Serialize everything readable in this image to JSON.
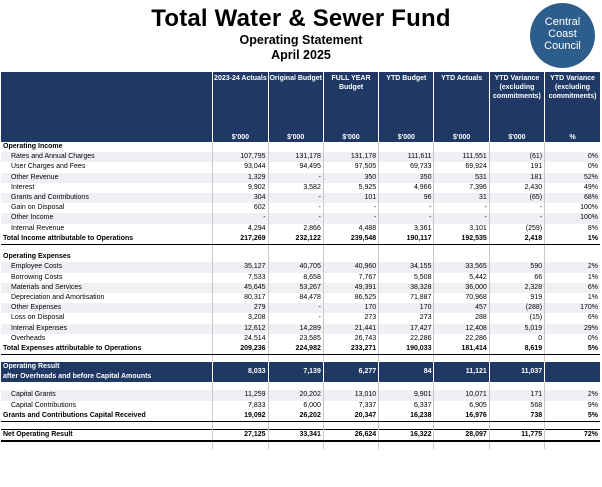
{
  "header": {
    "title": "Total Water & Sewer Fund",
    "subtitle": "Operating Statement",
    "period": "April 2025",
    "logo_lines": [
      "Central",
      "Coast",
      "Council"
    ]
  },
  "columns": [
    {
      "label": "2023-24 Actuals",
      "unit": "$'000"
    },
    {
      "label": "Original Budget",
      "unit": "$'000"
    },
    {
      "label": "FULL YEAR Budget",
      "unit": "$'000"
    },
    {
      "label": "YTD Budget",
      "unit": "$'000"
    },
    {
      "label": "YTD Actuals",
      "unit": "$'000"
    },
    {
      "label": "YTD Variance (excluding commitments)",
      "unit": "$'000"
    },
    {
      "label": "YTD Variance (excluding commitments)",
      "unit": "%"
    }
  ],
  "rows": [
    {
      "type": "sec",
      "label": "Operating Income",
      "v": [
        "",
        "",
        "",
        "",
        "",
        "",
        ""
      ]
    },
    {
      "type": "item",
      "shade": true,
      "label": "Rates and Annual Charges",
      "v": [
        "107,795",
        "131,178",
        "131,178",
        "111,611",
        "111,551",
        "(61)",
        "0%"
      ]
    },
    {
      "type": "item",
      "label": "User Charges and Fees",
      "v": [
        "93,044",
        "94,495",
        "97,505",
        "69,733",
        "69,924",
        "191",
        "0%"
      ]
    },
    {
      "type": "item",
      "shade": true,
      "label": "Other Revenue",
      "v": [
        "1,329",
        "-",
        "350",
        "350",
        "531",
        "181",
        "52%"
      ]
    },
    {
      "type": "item",
      "label": "Interest",
      "v": [
        "9,902",
        "3,582",
        "5,925",
        "4,966",
        "7,396",
        "2,430",
        "49%"
      ]
    },
    {
      "type": "item",
      "shade": true,
      "label": "Grants and Contributions",
      "v": [
        "304",
        "-",
        "101",
        "96",
        "31",
        "(65)",
        "68%"
      ]
    },
    {
      "type": "item",
      "label": "Gain on Disposal",
      "v": [
        "602",
        "-",
        "-",
        "-",
        "-",
        "-",
        "100%"
      ]
    },
    {
      "type": "item",
      "shade": true,
      "label": "Other Income",
      "v": [
        "-",
        "-",
        "-",
        "-",
        "-",
        "-",
        "100%"
      ]
    },
    {
      "type": "item",
      "label": "Internal Revenue",
      "v": [
        "4,294",
        "2,866",
        "4,488",
        "3,361",
        "3,101",
        "(259)",
        "8%"
      ]
    },
    {
      "type": "total",
      "label": "Total Income attributable to Operations",
      "v": [
        "217,269",
        "232,122",
        "239,548",
        "190,117",
        "192,535",
        "2,418",
        "1%"
      ]
    },
    {
      "type": "blank",
      "label": "",
      "v": [
        "",
        "",
        "",
        "",
        "",
        "",
        ""
      ]
    },
    {
      "type": "sec",
      "label": "Operating Expenses",
      "v": [
        "",
        "",
        "",
        "",
        "",
        "",
        ""
      ]
    },
    {
      "type": "item",
      "shade": true,
      "label": "Employee Costs",
      "v": [
        "35,127",
        "40,705",
        "40,960",
        "34,155",
        "33,565",
        "590",
        "2%"
      ]
    },
    {
      "type": "item",
      "label": "Borrowing Costs",
      "v": [
        "7,533",
        "8,658",
        "7,767",
        "5,508",
        "5,442",
        "66",
        "1%"
      ]
    },
    {
      "type": "item",
      "shade": true,
      "label": "Materials and Services",
      "v": [
        "45,645",
        "53,267",
        "49,391",
        "38,328",
        "36,000",
        "2,328",
        "6%"
      ]
    },
    {
      "type": "item",
      "label": "Depreciation and Amortisation",
      "v": [
        "80,317",
        "84,478",
        "86,525",
        "71,887",
        "70,968",
        "919",
        "1%"
      ]
    },
    {
      "type": "item",
      "shade": true,
      "label": "Other Expenses",
      "v": [
        "279",
        "-",
        "170",
        "170",
        "457",
        "(288)",
        "170%"
      ]
    },
    {
      "type": "item",
      "label": "Loss on Disposal",
      "v": [
        "3,208",
        "-",
        "273",
        "273",
        "288",
        "(15)",
        "6%"
      ]
    },
    {
      "type": "item",
      "shade": true,
      "label": "Internal Expenses",
      "v": [
        "12,612",
        "14,289",
        "21,441",
        "17,427",
        "12,408",
        "5,019",
        "29%"
      ]
    },
    {
      "type": "item",
      "label": "Overheads",
      "v": [
        "24,514",
        "23,585",
        "26,743",
        "22,286",
        "22,286",
        "0",
        "0%"
      ]
    },
    {
      "type": "total",
      "label": "Total Expenses attributable to Operations",
      "v": [
        "209,236",
        "224,982",
        "233,271",
        "190,033",
        "181,414",
        "8,619",
        "5%"
      ]
    },
    {
      "type": "blank",
      "label": "",
      "v": [
        "",
        "",
        "",
        "",
        "",
        "",
        ""
      ]
    },
    {
      "type": "oper",
      "label": "Operating Result",
      "label2": "after Overheads and before Capital Amounts",
      "v": [
        "8,033",
        "7,139",
        "6,277",
        "84",
        "11,121",
        "11,037",
        ""
      ]
    },
    {
      "type": "blank",
      "label": "",
      "v": [
        "",
        "",
        "",
        "",
        "",
        "",
        ""
      ]
    },
    {
      "type": "item",
      "shade": true,
      "label": "Capital Grants",
      "v": [
        "11,259",
        "20,202",
        "13,010",
        "9,901",
        "10,071",
        "171",
        "2%"
      ]
    },
    {
      "type": "item",
      "label": "Capital Contributions",
      "v": [
        "7,833",
        "6,000",
        "7,337",
        "6,337",
        "6,905",
        "568",
        "9%"
      ]
    },
    {
      "type": "total",
      "label": "Grants and Contributions Capital Received",
      "v": [
        "19,092",
        "26,202",
        "20,347",
        "16,238",
        "16,976",
        "738",
        "5%"
      ]
    },
    {
      "type": "blank",
      "label": "",
      "v": [
        "",
        "",
        "",
        "",
        "",
        "",
        ""
      ]
    },
    {
      "type": "net",
      "label": "Net Operating Result",
      "v": [
        "27,125",
        "33,341",
        "26,624",
        "16,322",
        "28,097",
        "11,775",
        "72%"
      ]
    },
    {
      "type": "blank",
      "label": "",
      "v": [
        "",
        "",
        "",
        "",
        "",
        "",
        ""
      ]
    }
  ]
}
